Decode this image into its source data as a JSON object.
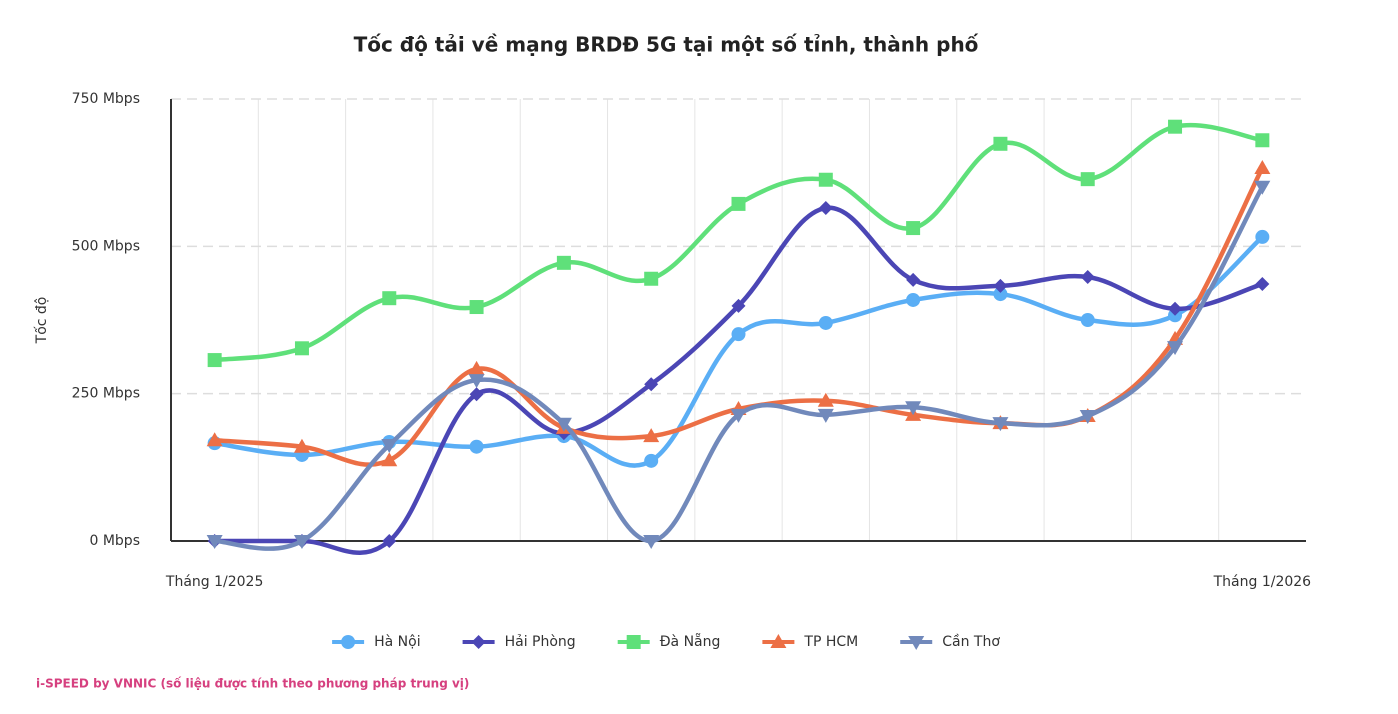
{
  "chart_data": {
    "type": "line",
    "title": "Tốc độ tải về mạng BRDĐ 5G tại một số tỉnh, thành phố",
    "y_label": "Tốc độ",
    "source": "i-SPEED by VNNIC (số liệu được tính theo phương pháp trung vị)",
    "categories": [
      "Tháng 1/2025",
      null,
      null,
      null,
      null,
      null,
      null,
      null,
      null,
      null,
      null,
      null,
      "Tháng 1/2026"
    ],
    "ylim": [
      0,
      750
    ],
    "yticks": [
      {
        "value": 0,
        "label": "0 Mbps"
      },
      {
        "value": 250,
        "label": "250 Mbps"
      },
      {
        "value": 500,
        "label": "500 Mbps"
      },
      {
        "value": 750,
        "label": "750 Mbps"
      }
    ],
    "grid": true,
    "legend": "bottom",
    "series": [
      {
        "name": "Hà Nội",
        "color": "#5aaef5",
        "marker": "circle",
        "values": [
          166,
          146,
          168,
          160,
          178,
          136,
          351,
          370,
          409,
          419,
          375,
          383,
          516
        ]
      },
      {
        "name": "Hải Phòng",
        "color": "#4b46b5",
        "marker": "diamond",
        "values": [
          0,
          0,
          0,
          249,
          183,
          266,
          399,
          565,
          443,
          433,
          448,
          394,
          436
        ]
      },
      {
        "name": "Đà Nẵng",
        "color": "#5fe07a",
        "marker": "square",
        "values": [
          307,
          327,
          412,
          397,
          472,
          445,
          572,
          613,
          531,
          674,
          614,
          703,
          680
        ]
      },
      {
        "name": "TP HCM",
        "color": "#ec6f45",
        "marker": "triangle-up",
        "values": [
          171,
          160,
          137,
          292,
          192,
          178,
          224,
          238,
          214,
          200,
          212,
          343,
          633
        ]
      },
      {
        "name": "Cần Thơ",
        "color": "#7189bb",
        "marker": "triangle-down",
        "values": [
          0,
          0,
          163,
          273,
          199,
          0,
          214,
          214,
          227,
          200,
          212,
          329,
          601
        ]
      }
    ]
  }
}
